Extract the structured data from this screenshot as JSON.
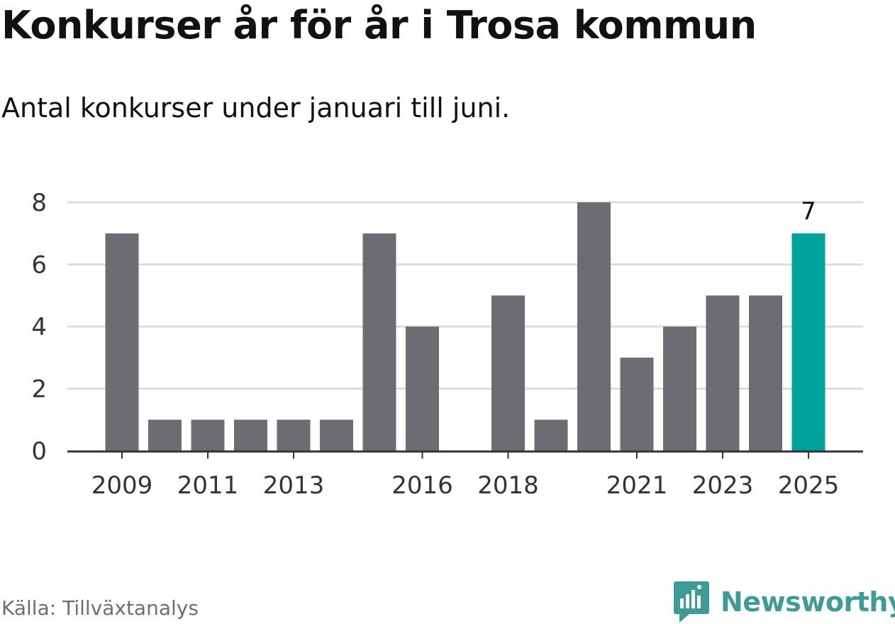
{
  "title": "Konkurser år för år i Trosa kommun",
  "subtitle": "Antal konkurser under januari till juni.",
  "source": "Källa: Tillväxtanalys",
  "brand": {
    "name": "Newsworthy",
    "icon": "newsworthy-logo-icon",
    "color": "#3f9b95"
  },
  "chart_data": {
    "type": "bar",
    "categories": [
      "2009",
      "2010",
      "2011",
      "2012",
      "2013",
      "2014",
      "2015",
      "2016",
      "2017",
      "2018",
      "2019",
      "2020",
      "2021",
      "2022",
      "2023",
      "2024",
      "2025"
    ],
    "values": [
      7,
      1,
      1,
      1,
      1,
      1,
      7,
      4,
      0,
      5,
      1,
      8,
      3,
      4,
      5,
      5,
      7
    ],
    "tick_labels": [
      "2009",
      "2011",
      "2013",
      "2016",
      "2018",
      "2021",
      "2023",
      "2025"
    ],
    "yticks": [
      0,
      2,
      4,
      6,
      8
    ],
    "ylim": [
      0,
      8
    ],
    "highlight": {
      "category": "2025",
      "label": "7"
    },
    "colors": {
      "bar": "#6d6c72",
      "highlight": "#00a39a",
      "grid": "#dddddd",
      "axis": "#333333"
    },
    "grid": true,
    "legend": "none",
    "xlabel": "",
    "ylabel": ""
  }
}
